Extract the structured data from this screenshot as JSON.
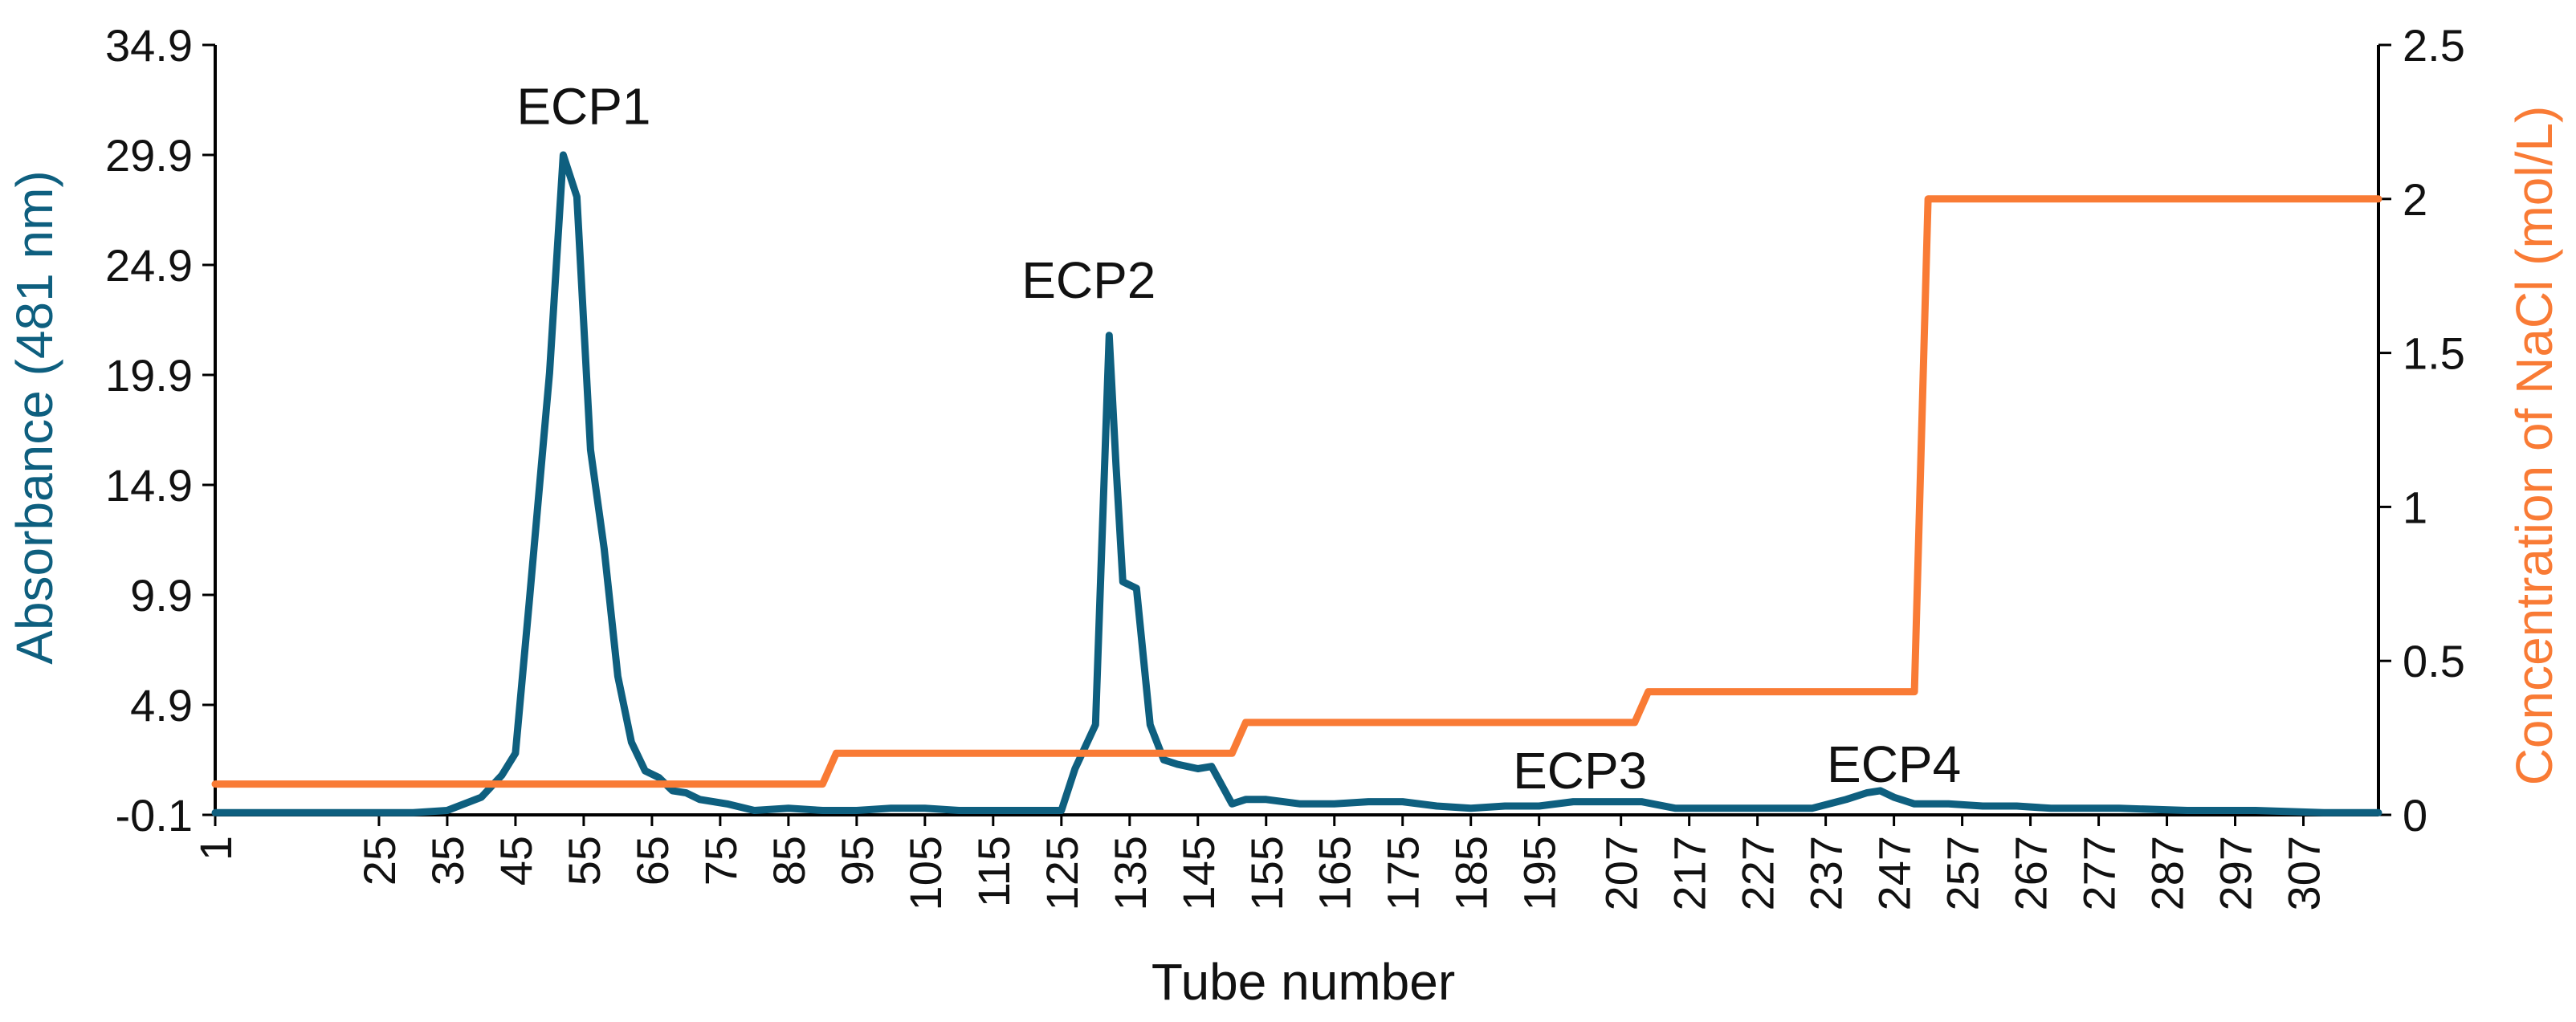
{
  "chart_data": {
    "type": "line",
    "title": "",
    "xlabel": "Tube number",
    "ylabel_left": "Absorbance (481 nm)",
    "ylabel_right": "Concentration of NaCl (mol/L)",
    "colors": {
      "absorbance": "#0e5f7f",
      "nacl": "#f97b35",
      "axis": "#000000"
    },
    "x_range": [
      1,
      318
    ],
    "x_ticks": [
      "1",
      "25",
      "35",
      "45",
      "55",
      "65",
      "75",
      "85",
      "95",
      "105",
      "115",
      "125",
      "135",
      "145",
      "155",
      "165",
      "175",
      "185",
      "195",
      "207",
      "217",
      "227",
      "237",
      "247",
      "257",
      "267",
      "277",
      "287",
      "297",
      "307"
    ],
    "y_left_range": [
      -0.1,
      34.9
    ],
    "y_left_ticks": [
      "-0.1",
      "4.9",
      "9.9",
      "14.9",
      "19.9",
      "24.9",
      "29.9",
      "34.9"
    ],
    "y_right_range": [
      0,
      2.5
    ],
    "y_right_ticks": [
      "0",
      "0.5",
      "1",
      "1.5",
      "2",
      "2.5"
    ],
    "grid": false,
    "annotations": [
      {
        "text": "ECP1",
        "x": 55,
        "y": 31.3
      },
      {
        "text": "ECP2",
        "x": 129,
        "y": 23.4
      },
      {
        "text": "ECP3",
        "x": 201,
        "y": 1.1
      },
      {
        "text": "ECP4",
        "x": 247,
        "y": 1.4
      }
    ],
    "series": [
      {
        "name": "Absorbance (481 nm)",
        "axis": "left",
        "x": [
          1,
          10,
          20,
          30,
          35,
          40,
          43,
          45,
          47,
          50,
          52,
          54,
          56,
          58,
          60,
          62,
          64,
          66,
          68,
          70,
          72,
          74,
          76,
          80,
          85,
          90,
          95,
          100,
          105,
          110,
          115,
          120,
          125,
          127,
          130,
          132,
          133,
          134,
          136,
          138,
          140,
          142,
          145,
          147,
          150,
          152,
          155,
          160,
          165,
          170,
          175,
          180,
          185,
          190,
          195,
          200,
          205,
          210,
          215,
          220,
          225,
          230,
          235,
          240,
          243,
          245,
          247,
          250,
          255,
          260,
          265,
          270,
          280,
          290,
          300,
          310,
          318
        ],
        "values": [
          0,
          0,
          0,
          0,
          0.1,
          0.7,
          1.7,
          2.7,
          9.5,
          20,
          29.9,
          28,
          16.5,
          12,
          6.2,
          3.2,
          1.9,
          1.6,
          1,
          0.9,
          0.6,
          0.5,
          0.4,
          0.1,
          0.2,
          0.1,
          0.1,
          0.2,
          0.2,
          0.1,
          0.1,
          0.1,
          0.1,
          2,
          4,
          21.7,
          15.8,
          10.5,
          10.2,
          4,
          2.4,
          2.2,
          2,
          2.1,
          0.4,
          0.6,
          0.6,
          0.4,
          0.4,
          0.5,
          0.5,
          0.3,
          0.2,
          0.3,
          0.3,
          0.5,
          0.5,
          0.5,
          0.2,
          0.2,
          0.2,
          0.2,
          0.2,
          0.6,
          0.9,
          1,
          0.7,
          0.4,
          0.4,
          0.3,
          0.3,
          0.2,
          0.2,
          0.1,
          0.1,
          0,
          0
        ]
      },
      {
        "name": "Concentration of NaCl (mol/L)",
        "axis": "right",
        "x": [
          1,
          90,
          92,
          150,
          152,
          209,
          211,
          250,
          252,
          318
        ],
        "values": [
          0.1,
          0.1,
          0.2,
          0.2,
          0.3,
          0.3,
          0.4,
          0.4,
          2,
          2
        ]
      }
    ]
  }
}
